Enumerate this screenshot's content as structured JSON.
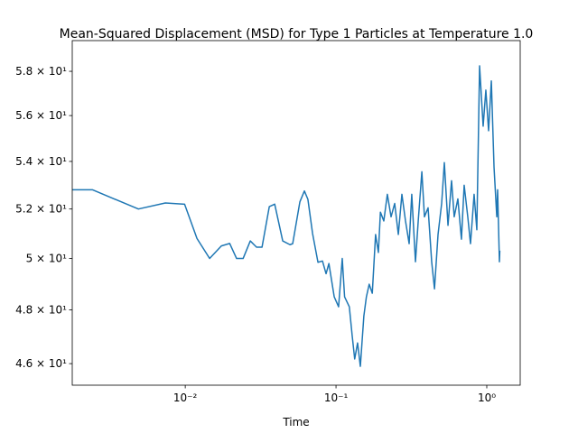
{
  "chart_data": {
    "type": "line",
    "title": "Mean-Squared Displacement (MSD) for Type 1 Particles at Temperature 1.0",
    "x_label": "Time",
    "x_scale": "log",
    "y_scale": "log",
    "xlim": [
      0.00178,
      1.666
    ],
    "ylim": [
      45.22,
      59.43
    ],
    "xticks": [
      {
        "value": 0.01,
        "label": "10⁻²"
      },
      {
        "value": 0.1,
        "label": "10⁻¹"
      },
      {
        "value": 1,
        "label": "10⁰"
      }
    ],
    "yticks": [
      {
        "value": 46,
        "label": "4.6 × 10¹"
      },
      {
        "value": 48,
        "label": "4.8 × 10¹"
      },
      {
        "value": 50,
        "label": "5 × 10¹"
      },
      {
        "value": 52,
        "label": "5.2 × 10¹"
      },
      {
        "value": 54,
        "label": "5.4 × 10¹"
      },
      {
        "value": 56,
        "label": "5.6 × 10¹"
      },
      {
        "value": 58,
        "label": "5.8 × 10¹"
      }
    ],
    "grid": false,
    "x": [
      0.00178,
      0.00242,
      0.00489,
      0.00738,
      0.0099,
      0.01196,
      0.01451,
      0.01736,
      0.0197,
      0.0219,
      0.0242,
      0.027,
      0.0297,
      0.0323,
      0.0361,
      0.0392,
      0.0443,
      0.0495,
      0.0516,
      0.0576,
      0.0617,
      0.0651,
      0.0699,
      0.0759,
      0.0813,
      0.0859,
      0.0897,
      0.0973,
      0.104,
      0.11,
      0.114,
      0.1225,
      0.128,
      0.133,
      0.139,
      0.145,
      0.153,
      0.159,
      0.166,
      0.174,
      0.183,
      0.191,
      0.197,
      0.2075,
      0.219,
      0.2318,
      0.245,
      0.259,
      0.2735,
      0.289,
      0.3055,
      0.318,
      0.3365,
      0.351,
      0.371,
      0.386,
      0.408,
      0.431,
      0.45,
      0.475,
      0.502,
      0.523,
      0.553,
      0.584,
      0.608,
      0.643,
      0.679,
      0.708,
      0.748,
      0.78,
      0.824,
      0.859,
      0.896,
      0.946,
      0.986,
      1.028,
      1.072,
      1.117,
      1.165,
      1.18,
      1.213,
      1.22
    ],
    "series": [
      {
        "name": "MSD",
        "color": "#1f77b4",
        "values": [
          52.8,
          52.8,
          52.0,
          52.25,
          52.2,
          50.8,
          50.0,
          50.5,
          50.6,
          50.0,
          50.0,
          50.7,
          50.45,
          50.45,
          52.1,
          52.2,
          50.7,
          50.55,
          50.59,
          52.3,
          52.75,
          52.4,
          51.0,
          49.85,
          49.9,
          49.4,
          49.8,
          48.5,
          48.12,
          50.0,
          48.5,
          48.12,
          47.03,
          46.17,
          46.76,
          45.9,
          47.77,
          48.5,
          48.99,
          48.64,
          50.96,
          50.24,
          51.87,
          51.51,
          52.61,
          51.68,
          52.23,
          50.96,
          52.61,
          51.51,
          50.59,
          52.61,
          49.87,
          51.51,
          53.56,
          51.68,
          52.05,
          49.87,
          48.81,
          50.96,
          52.23,
          53.95,
          51.33,
          53.18,
          51.68,
          52.42,
          50.77,
          52.99,
          51.68,
          50.59,
          52.61,
          51.15,
          58.25,
          55.53,
          57.14,
          55.33,
          57.56,
          53.76,
          51.68,
          52.8,
          49.87,
          50.31
        ]
      }
    ]
  }
}
